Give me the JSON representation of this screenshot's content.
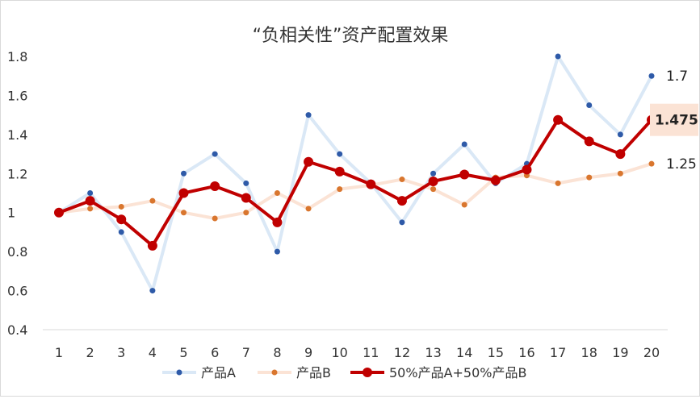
{
  "chart_data": {
    "type": "line",
    "title": "“负相关性”资产配置效果",
    "xlabel": "",
    "ylabel": "",
    "ylim": [
      0.4,
      1.8
    ],
    "yticks": [
      "0.4",
      "0.6",
      "0.8",
      "1",
      "1.2",
      "1.4",
      "1.6",
      "1.8"
    ],
    "x": [
      1,
      2,
      3,
      4,
      5,
      6,
      7,
      8,
      9,
      10,
      11,
      12,
      13,
      14,
      15,
      16,
      17,
      18,
      19,
      20
    ],
    "xticks": [
      "1",
      "2",
      "3",
      "4",
      "5",
      "6",
      "7",
      "8",
      "9",
      "10",
      "11",
      "12",
      "13",
      "14",
      "15",
      "16",
      "17",
      "18",
      "19",
      "20"
    ],
    "grid": false,
    "legend": "bottom",
    "series": [
      {
        "name": "产品A",
        "line_color": "#dae8f6",
        "marker_color": "#2e5aa8",
        "values": [
          1.0,
          1.1,
          0.9,
          0.6,
          1.2,
          1.3,
          1.15,
          0.8,
          1.5,
          1.3,
          1.15,
          0.95,
          1.2,
          1.35,
          1.15,
          1.25,
          1.8,
          1.55,
          1.4,
          1.7
        ],
        "end_label": "1.7"
      },
      {
        "name": "产品B",
        "line_color": "#fbe3d5",
        "marker_color": "#d9762e",
        "values": [
          1.0,
          1.02,
          1.03,
          1.06,
          1.0,
          0.97,
          1.0,
          1.1,
          1.02,
          1.12,
          1.14,
          1.17,
          1.12,
          1.04,
          1.18,
          1.19,
          1.15,
          1.18,
          1.2,
          1.25
        ],
        "end_label": "1.25"
      },
      {
        "name": "50%产品A+50%产品B",
        "line_color": "#c00000",
        "marker_color": "#c00000",
        "values": [
          1.0,
          1.06,
          0.965,
          0.83,
          1.1,
          1.135,
          1.075,
          0.95,
          1.26,
          1.21,
          1.145,
          1.06,
          1.16,
          1.195,
          1.165,
          1.22,
          1.475,
          1.365,
          1.3,
          1.475
        ],
        "end_label": "1.475",
        "end_label_highlight": "#fbe3d5"
      }
    ]
  }
}
